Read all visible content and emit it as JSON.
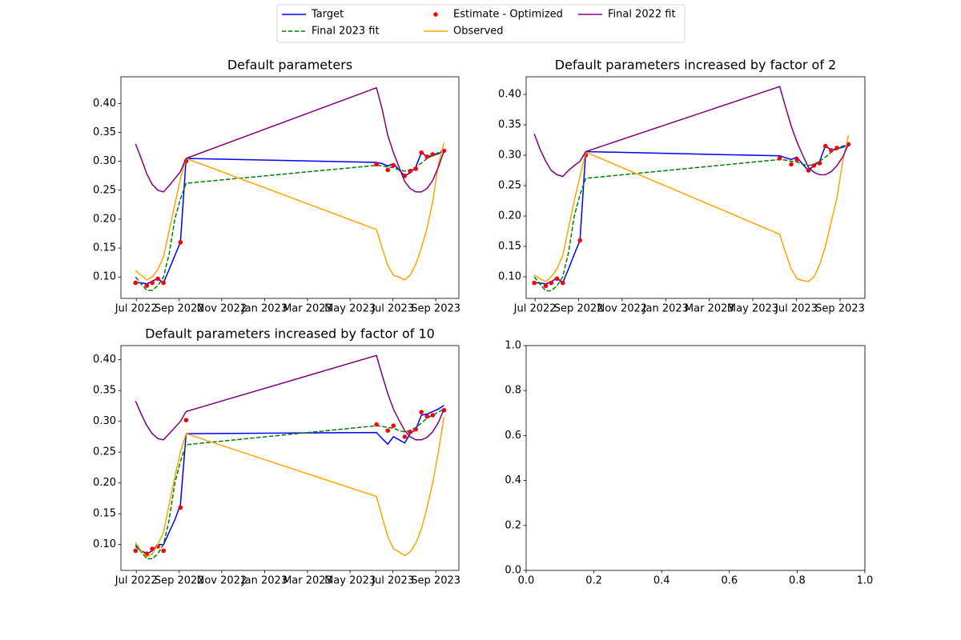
{
  "chart_data": [
    {
      "type": "line",
      "title": "Default parameters",
      "legend": "upper center",
      "legend_columns": 3,
      "x": [
        2022.497,
        2022.519,
        2022.541,
        2022.562,
        2022.584,
        2022.606,
        2022.628,
        2022.65,
        2022.672,
        2022.694,
        2023.436,
        2023.458,
        2023.48,
        2023.502,
        2023.524,
        2023.546,
        2023.567,
        2023.589,
        2023.611,
        2023.633,
        2023.655,
        2023.677,
        2023.699
      ],
      "xlim": [
        2022.44,
        2023.757
      ],
      "xticks": [
        {
          "value": 2022.5,
          "label": "Jul 2022"
        },
        {
          "value": 2022.667,
          "label": "Sep 2022"
        },
        {
          "value": 2022.833,
          "label": "Nov 2022"
        },
        {
          "value": 2023.0,
          "label": "Jan 2023"
        },
        {
          "value": 2023.167,
          "label": "Mar 2023"
        },
        {
          "value": 2023.333,
          "label": "May 2023"
        },
        {
          "value": 2023.5,
          "label": "Jul 2023"
        },
        {
          "value": 2023.667,
          "label": "Sep 2023"
        }
      ],
      "ylim": [
        0.063,
        0.446
      ],
      "yticks": [
        {
          "value": 0.1,
          "label": "0.10"
        },
        0.15,
        {
          "value": 0.2,
          "label": "0.20"
        },
        0.25,
        {
          "value": 0.3,
          "label": "0.30"
        },
        0.35,
        {
          "value": 0.4,
          "label": "0.40"
        }
      ],
      "series": [
        {
          "name": "Target",
          "color": "#0000ff",
          "style": "solid",
          "values": [
            0.09,
            0.09,
            0.088,
            0.093,
            0.097,
            0.09,
            0.113,
            0.137,
            0.16,
            0.305,
            0.298,
            0.296,
            0.292,
            0.296,
            0.285,
            0.275,
            0.28,
            0.29,
            0.315,
            0.308,
            0.31,
            0.313,
            0.318
          ]
        },
        {
          "name": "Final 2023 fit",
          "color": "#008000",
          "style": "dashed",
          "values": [
            0.1,
            0.088,
            0.077,
            0.077,
            0.085,
            0.1,
            0.14,
            0.2,
            0.235,
            0.262,
            0.293,
            0.292,
            0.29,
            0.289,
            0.285,
            0.283,
            0.285,
            0.29,
            0.297,
            0.305,
            0.31,
            0.315,
            0.32
          ]
        },
        {
          "name": "Estimate - Optimized",
          "color": "#ff0000",
          "style": "scatter",
          "values": [
            0.09,
            null,
            0.085,
            0.09,
            0.097,
            0.09,
            null,
            null,
            0.16,
            0.3,
            0.295,
            null,
            0.285,
            0.293,
            null,
            0.275,
            0.283,
            0.287,
            0.315,
            0.308,
            0.312,
            null,
            0.318
          ]
        },
        {
          "name": "Observed",
          "color": "#ffa500",
          "style": "solid",
          "values": [
            0.111,
            0.103,
            0.095,
            0.1,
            0.113,
            0.135,
            0.18,
            0.225,
            0.27,
            0.305,
            0.182,
            0.15,
            0.12,
            0.103,
            0.1,
            0.095,
            0.103,
            0.122,
            0.15,
            0.185,
            0.23,
            0.295,
            0.332
          ]
        },
        {
          "name": "Final 2022 fit",
          "color": "#800080",
          "style": "solid",
          "values": [
            0.33,
            0.305,
            0.278,
            0.26,
            0.25,
            0.247,
            0.258,
            0.27,
            0.282,
            0.305,
            0.427,
            0.39,
            0.345,
            0.315,
            0.29,
            0.265,
            0.253,
            0.247,
            0.247,
            0.253,
            0.267,
            0.29,
            0.318
          ]
        }
      ]
    },
    {
      "type": "line",
      "title": "Default parameters increased by factor of 2",
      "x": [
        2022.497,
        2022.519,
        2022.541,
        2022.562,
        2022.584,
        2022.606,
        2022.628,
        2022.65,
        2022.672,
        2022.694,
        2023.436,
        2023.458,
        2023.48,
        2023.502,
        2023.524,
        2023.546,
        2023.567,
        2023.589,
        2023.611,
        2023.633,
        2023.655,
        2023.677,
        2023.699
      ],
      "xlim": [
        2022.466,
        2023.762
      ],
      "xticks": [
        {
          "value": 2022.5,
          "label": "Jul 2022"
        },
        {
          "value": 2022.667,
          "label": "Sep 2022"
        },
        {
          "value": 2022.833,
          "label": "Nov 2022"
        },
        {
          "value": 2023.0,
          "label": "Jan 2023"
        },
        {
          "value": 2023.167,
          "label": "Mar 2023"
        },
        {
          "value": 2023.333,
          "label": "May 2023"
        },
        {
          "value": 2023.5,
          "label": "Jul 2023"
        },
        {
          "value": 2023.667,
          "label": "Sep 2023"
        }
      ],
      "ylim": [
        0.0645,
        0.429
      ],
      "yticks": [
        {
          "value": 0.1,
          "label": "0.10"
        },
        0.15,
        {
          "value": 0.2,
          "label": "0.20"
        },
        0.25,
        {
          "value": 0.3,
          "label": "0.30"
        },
        0.35,
        {
          "value": 0.4,
          "label": "0.40"
        }
      ],
      "series": [
        {
          "name": "Target",
          "color": "#0000ff",
          "style": "solid",
          "values": [
            0.09,
            0.09,
            0.088,
            0.092,
            0.098,
            0.09,
            0.113,
            0.137,
            0.16,
            0.306,
            0.299,
            0.296,
            0.293,
            0.297,
            0.285,
            0.275,
            0.283,
            0.29,
            0.316,
            0.308,
            0.311,
            0.313,
            0.318
          ]
        },
        {
          "name": "Final 2023 fit",
          "color": "#008000",
          "style": "dashed",
          "values": [
            0.1,
            0.088,
            0.077,
            0.077,
            0.085,
            0.1,
            0.14,
            0.2,
            0.235,
            0.262,
            0.293,
            0.292,
            0.29,
            0.289,
            0.285,
            0.283,
            0.285,
            0.29,
            0.297,
            0.305,
            0.31,
            0.315,
            0.32
          ]
        },
        {
          "name": "Estimate - Optimized",
          "color": "#ff0000",
          "style": "scatter",
          "values": [
            0.09,
            null,
            0.085,
            0.09,
            0.097,
            0.09,
            null,
            null,
            0.16,
            0.3,
            0.295,
            null,
            0.285,
            0.293,
            null,
            0.275,
            0.283,
            0.287,
            0.315,
            0.308,
            0.312,
            null,
            0.318
          ]
        },
        {
          "name": "Observed",
          "color": "#ffa500",
          "style": "solid",
          "values": [
            0.103,
            0.097,
            0.092,
            0.1,
            0.113,
            0.135,
            0.18,
            0.225,
            0.265,
            0.305,
            0.17,
            0.14,
            0.113,
            0.097,
            0.094,
            0.092,
            0.1,
            0.12,
            0.15,
            0.19,
            0.23,
            0.29,
            0.333
          ]
        },
        {
          "name": "Final 2022 fit",
          "color": "#800080",
          "style": "solid",
          "values": [
            0.335,
            0.31,
            0.29,
            0.275,
            0.268,
            0.265,
            0.275,
            0.283,
            0.29,
            0.306,
            0.413,
            0.38,
            0.348,
            0.322,
            0.3,
            0.28,
            0.272,
            0.268,
            0.268,
            0.273,
            0.283,
            0.297,
            0.318
          ]
        }
      ]
    },
    {
      "type": "line",
      "title": "Default parameters increased by factor of 10",
      "x": [
        2022.497,
        2022.519,
        2022.541,
        2022.562,
        2022.584,
        2022.606,
        2022.628,
        2022.65,
        2022.672,
        2022.694,
        2023.436,
        2023.458,
        2023.48,
        2023.502,
        2023.524,
        2023.546,
        2023.567,
        2023.589,
        2023.611,
        2023.633,
        2023.655,
        2023.677,
        2023.699
      ],
      "xlim": [
        2022.44,
        2023.757
      ],
      "xticks": [
        {
          "value": 2022.5,
          "label": "Jul 2022"
        },
        {
          "value": 2022.667,
          "label": "Sep 2022"
        },
        {
          "value": 2022.833,
          "label": "Nov 2022"
        },
        {
          "value": 2023.0,
          "label": "Jan 2023"
        },
        {
          "value": 2023.167,
          "label": "Mar 2023"
        },
        {
          "value": 2023.333,
          "label": "May 2023"
        },
        {
          "value": 2023.5,
          "label": "Jul 2023"
        },
        {
          "value": 2023.667,
          "label": "Sep 2023"
        }
      ],
      "ylim": [
        0.058,
        0.423
      ],
      "yticks": [
        {
          "value": 0.1,
          "label": "0.10"
        },
        0.15,
        {
          "value": 0.2,
          "label": "0.20"
        },
        0.25,
        {
          "value": 0.3,
          "label": "0.30"
        },
        0.35,
        {
          "value": 0.4,
          "label": "0.40"
        }
      ],
      "series": [
        {
          "name": "Target",
          "color": "#0000ff",
          "style": "solid",
          "values": [
            0.097,
            0.09,
            0.085,
            0.09,
            0.1,
            0.1,
            0.12,
            0.14,
            0.165,
            0.28,
            0.282,
            0.272,
            0.263,
            0.275,
            0.27,
            0.265,
            0.28,
            0.287,
            0.31,
            0.312,
            0.316,
            0.32,
            0.326
          ]
        },
        {
          "name": "Final 2023 fit",
          "color": "#008000",
          "style": "dashed",
          "values": [
            0.1,
            0.088,
            0.077,
            0.077,
            0.085,
            0.1,
            0.14,
            0.2,
            0.235,
            0.262,
            0.293,
            0.292,
            0.29,
            0.289,
            0.285,
            0.283,
            0.285,
            0.29,
            0.297,
            0.305,
            0.31,
            0.315,
            0.32
          ]
        },
        {
          "name": "Estimate - Optimized",
          "color": "#ff0000",
          "style": "scatter",
          "values": [
            0.09,
            null,
            0.085,
            0.093,
            0.097,
            0.09,
            null,
            null,
            0.16,
            0.302,
            0.295,
            null,
            0.285,
            0.293,
            null,
            0.275,
            0.283,
            0.287,
            0.315,
            0.308,
            0.31,
            null,
            0.318
          ]
        },
        {
          "name": "Observed",
          "color": "#ffa500",
          "style": "solid",
          "values": [
            0.103,
            0.09,
            0.08,
            0.085,
            0.1,
            0.12,
            0.165,
            0.21,
            0.25,
            0.28,
            0.178,
            0.145,
            0.113,
            0.093,
            0.088,
            0.082,
            0.088,
            0.102,
            0.125,
            0.16,
            0.2,
            0.25,
            0.307
          ]
        },
        {
          "name": "Final 2022 fit",
          "color": "#800080",
          "style": "solid",
          "values": [
            0.333,
            0.312,
            0.293,
            0.28,
            0.272,
            0.27,
            0.28,
            0.29,
            0.3,
            0.316,
            0.407,
            0.375,
            0.345,
            0.32,
            0.302,
            0.285,
            0.275,
            0.27,
            0.27,
            0.274,
            0.283,
            0.298,
            0.32
          ]
        }
      ]
    },
    {
      "type": "line",
      "xlim": [
        0,
        1
      ],
      "xticks": [
        {
          "value": 0,
          "label": "0.0"
        },
        0.2,
        0.4,
        0.6,
        0.8,
        {
          "value": 1,
          "label": "1.0"
        }
      ],
      "ylim": [
        0,
        1
      ],
      "yticks": [
        {
          "value": 0,
          "label": "0.0"
        },
        0.2,
        0.4,
        0.6,
        0.8,
        {
          "value": 1,
          "label": "1.0"
        }
      ],
      "series": []
    }
  ]
}
